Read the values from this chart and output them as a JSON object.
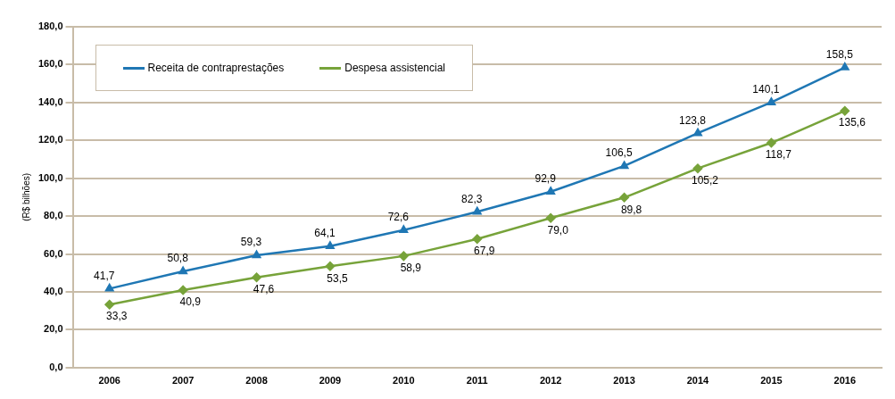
{
  "chart_data": {
    "type": "line",
    "ylabel": "(R$ bilhões)",
    "categories": [
      "2006",
      "2007",
      "2008",
      "2009",
      "2010",
      "2011",
      "2012",
      "2013",
      "2014",
      "2015",
      "2016"
    ],
    "series": [
      {
        "name": "Receita de contraprestações",
        "color": "#1f77b4",
        "marker": "triangle",
        "values": [
          41.7,
          50.8,
          59.3,
          64.1,
          72.6,
          82.3,
          92.9,
          106.5,
          123.8,
          140.1,
          158.5
        ],
        "value_labels": [
          "41,7",
          "50,8",
          "59,3",
          "64,1",
          "72,6",
          "82,3",
          "92,9",
          "106,5",
          "123,8",
          "140,1",
          "158,5"
        ]
      },
      {
        "name": "Despesa assistencial",
        "color": "#77a33a",
        "marker": "diamond",
        "values": [
          33.3,
          40.9,
          47.6,
          53.5,
          58.9,
          67.9,
          79.0,
          89.8,
          105.2,
          118.7,
          135.6
        ],
        "value_labels": [
          "33,3",
          "40,9",
          "47,6",
          "53,5",
          "58,9",
          "67,9",
          "79,0",
          "89,8",
          "105,2",
          "118,7",
          "135,6"
        ]
      }
    ],
    "ylim": [
      0,
      180
    ],
    "yticks": [
      {
        "value": 0,
        "label": "0,0"
      },
      {
        "value": 20,
        "label": "20,0"
      },
      {
        "value": 40,
        "label": "40,0"
      },
      {
        "value": 60,
        "label": "60,0"
      },
      {
        "value": 80,
        "label": "80,0"
      },
      {
        "value": 100,
        "label": "100,0"
      },
      {
        "value": 120,
        "label": "120,0"
      },
      {
        "value": 140,
        "label": "140,0"
      },
      {
        "value": 160,
        "label": "160,0"
      },
      {
        "value": 180,
        "label": "180,0"
      }
    ],
    "grid": "y",
    "legend": "top left",
    "line_style": "solid"
  }
}
